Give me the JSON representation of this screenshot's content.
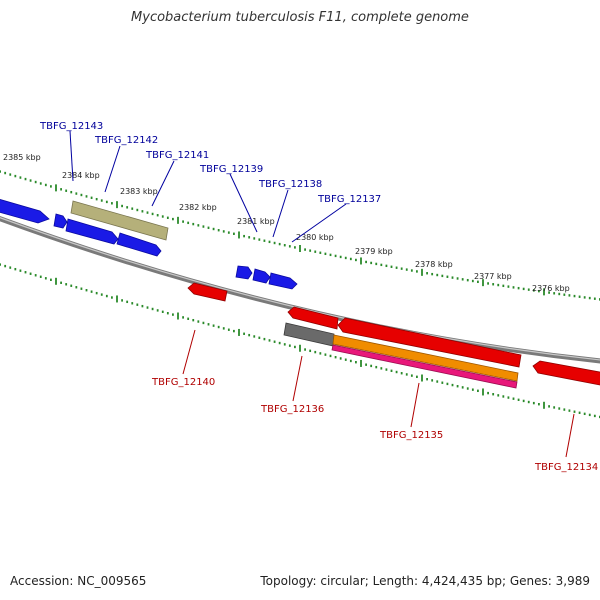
{
  "title": "Mycobacterium tuberculosis F11, complete genome",
  "footer": {
    "accession": "Accession: NC_009565",
    "summary": "Topology: circular; Length: 4,424,435 bp; Genes: 3,989"
  },
  "colors": {
    "forward_gene": "#1a1ae6",
    "reverse_gene": "#e60000",
    "pseudo_gene": "#b5b07a",
    "rna_grey": "#6a6a6a",
    "orange_feature": "#f08c00",
    "pink_feature": "#e8177a",
    "ticks": "#2a8a2a",
    "backbone": "#7a7a7a",
    "forward_label": "#00009a",
    "reverse_label": "#b00000"
  },
  "scale": {
    "kbp_labels": [
      "2385 kbp",
      "2384 kbp",
      "2383 kbp",
      "2382 kbp",
      "2381 kbp",
      "2380 kbp",
      "2379 kbp",
      "2378 kbp",
      "2377 kbp",
      "2376 kbp"
    ]
  },
  "forward_genes": [
    {
      "name": "TBFG_12143",
      "strand": "forward"
    },
    {
      "name": "TBFG_12142",
      "strand": "forward"
    },
    {
      "name": "TBFG_12141",
      "strand": "forward"
    },
    {
      "name": "TBFG_12139",
      "strand": "forward"
    },
    {
      "name": "TBFG_12138",
      "strand": "forward"
    },
    {
      "name": "TBFG_12137",
      "strand": "forward"
    }
  ],
  "reverse_genes": [
    {
      "name": "TBFG_12140",
      "strand": "reverse"
    },
    {
      "name": "TBFG_12136",
      "strand": "reverse"
    },
    {
      "name": "TBFG_12135",
      "strand": "reverse"
    },
    {
      "name": "TBFG_12134",
      "strand": "reverse"
    }
  ]
}
